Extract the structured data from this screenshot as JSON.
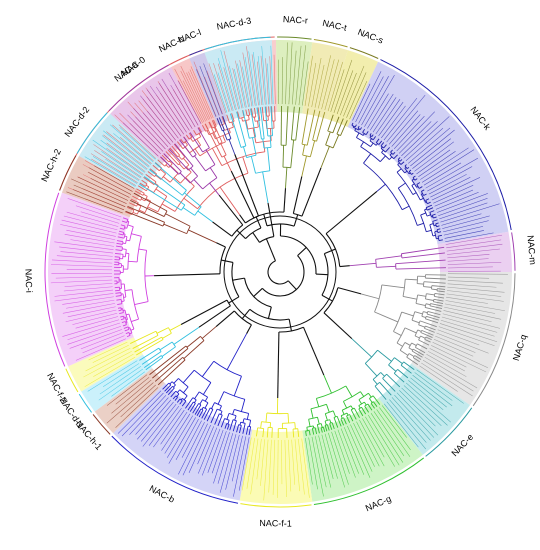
{
  "figure": {
    "title": "",
    "clades": [
      {
        "name": "clade-nac-0",
        "label": "NAC-0",
        "color": "#e06060",
        "band": "#f7c6c6",
        "start": -70,
        "end": -1
      },
      {
        "name": "clade-nac-r",
        "label": "NAC-r",
        "color": "#6a8a2a",
        "band": "#d7ecb4",
        "start": -1,
        "end": 8
      },
      {
        "name": "clade-nac-t",
        "label": "NAC-t",
        "color": "#a0982a",
        "band": "#eee8a8",
        "start": 8,
        "end": 17
      },
      {
        "name": "clade-nac-s",
        "label": "NAC-s",
        "color": "#7a7a20",
        "band": "#f0eba0",
        "start": 17,
        "end": 25
      },
      {
        "name": "clade-nac-k",
        "label": "NAC-k",
        "color": "#1e1ea8",
        "band": "#c8c8f2",
        "start": 25,
        "end": 80
      },
      {
        "name": "clade-nac-m",
        "label": "NAC-m",
        "color": "#a040b0",
        "band": "#e8c8ee",
        "start": 80,
        "end": 90
      },
      {
        "name": "clade-nac-q",
        "label": "NAC-q",
        "color": "#8a8a8a",
        "band": "#e2e2e2",
        "start": 90,
        "end": 125
      },
      {
        "name": "clade-nac-e",
        "label": "NAC-e",
        "color": "#2a9aa0",
        "band": "#b8e6ea",
        "start": 125,
        "end": 142
      },
      {
        "name": "clade-nac-g",
        "label": "NAC-g",
        "color": "#30c030",
        "band": "#c6f2bc",
        "start": 142,
        "end": 172
      },
      {
        "name": "clade-nac-f-1",
        "label": "NAC-f-1",
        "color": "#e8e820",
        "band": "#fafaa8",
        "start": 172,
        "end": 190
      },
      {
        "name": "clade-nac-b",
        "label": "NAC-b",
        "color": "#2020c8",
        "band": "#ccccf6",
        "start": 190,
        "end": 226
      },
      {
        "name": "clade-nac-h-1",
        "label": "NAC-h-1",
        "color": "#8a3a28",
        "band": "#e8c8bc",
        "start": 226,
        "end": 233
      },
      {
        "name": "clade-nac-d-1",
        "label": "NAC-d-1",
        "color": "#30c0e0",
        "band": "#c2eefa",
        "start": 233,
        "end": 239
      },
      {
        "name": "clade-nac-f-2",
        "label": "NAC-f-2",
        "color": "#e8e820",
        "band": "#fafab0",
        "start": 239,
        "end": 246
      },
      {
        "name": "clade-nac-i",
        "label": "NAC-i",
        "color": "#d040e0",
        "band": "#f2c8f8",
        "start": 246,
        "end": 290
      },
      {
        "name": "clade-nac-h-2",
        "label": "NAC-h-2",
        "color": "#8a3a28",
        "band": "#e8cabe",
        "start": 290,
        "end": 300
      },
      {
        "name": "clade-nac-d-2",
        "label": "NAC-d-2",
        "color": "#30c0e0",
        "band": "#c2eefa",
        "start": 300,
        "end": 313
      },
      {
        "name": "clade-nac-a",
        "label": "NAC-a",
        "color": "#9a38a8",
        "band": "#e6c4ee",
        "start": 313,
        "end": 332
      },
      {
        "name": "clade-nac-c",
        "label": "NAC-c",
        "color": "#e06060",
        "band": "#f7c6c6",
        "start": 332,
        "end": 337
      },
      {
        "name": "clade-nac-l",
        "label": "NAC-l",
        "color": "#3030a8",
        "band": "#c8c8f0",
        "start": 337,
        "end": 341
      },
      {
        "name": "clade-nac-d-3",
        "label": "NAC-d-3",
        "color": "#30c0e0",
        "band": "#c2eefa",
        "start": 341,
        "end": 358
      }
    ]
  }
}
